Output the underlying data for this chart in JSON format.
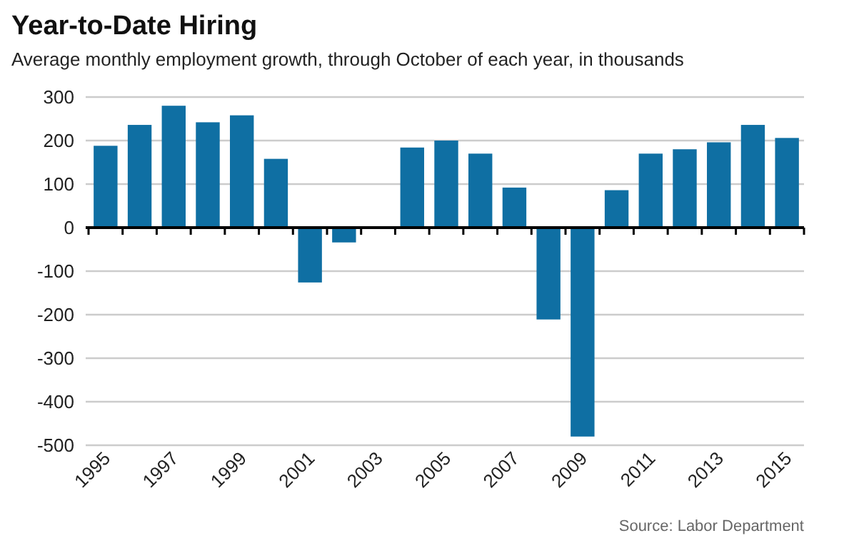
{
  "chart_data": {
    "type": "bar",
    "title": "Year-to-Date Hiring",
    "subtitle": "Average monthly employment growth, through October of each year, in thousands",
    "categories": [
      "1995",
      null,
      "1997",
      null,
      "1999",
      null,
      "2001",
      null,
      "2003",
      null,
      "2005",
      null,
      "2007",
      null,
      "2009",
      null,
      "2011",
      null,
      "2013",
      null,
      "2015"
    ],
    "values": [
      188,
      236,
      280,
      242,
      258,
      158,
      -126,
      -34,
      0,
      184,
      200,
      170,
      92,
      -211,
      -480,
      86,
      170,
      180,
      196,
      236,
      206
    ],
    "color": "#0f6fa3",
    "ylim": [
      -500,
      300
    ],
    "yticks": [
      -500,
      -400,
      -300,
      -200,
      -100,
      0,
      100,
      200,
      300
    ],
    "grid": "y",
    "annotations": [
      "Source: Labor Department"
    ]
  }
}
